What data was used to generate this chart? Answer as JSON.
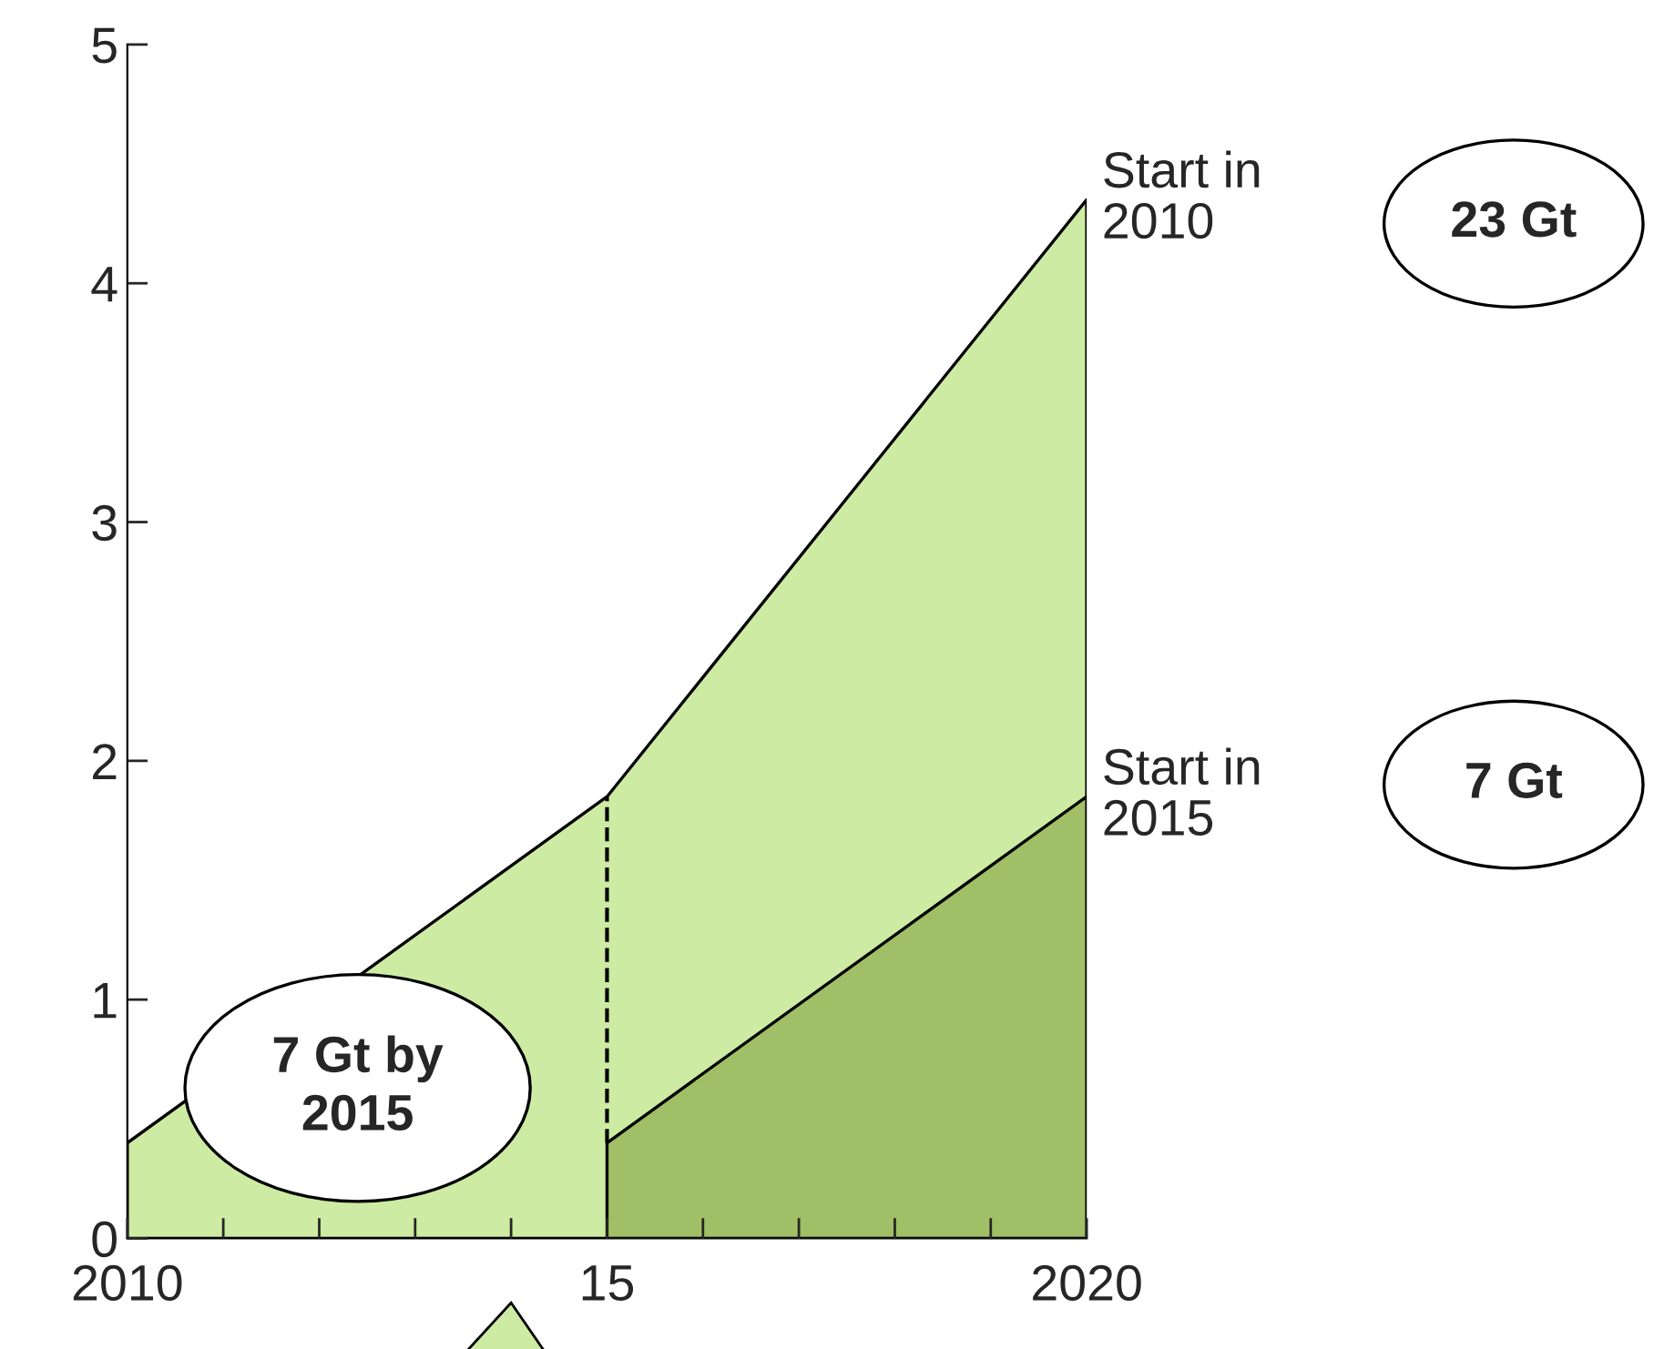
{
  "chart_data": {
    "type": "area",
    "series": [
      {
        "name": "Start in 2010",
        "color": "#cdeba2",
        "x": [
          2010,
          2015,
          2020
        ],
        "values": [
          0.4,
          1.85,
          4.35
        ]
      },
      {
        "name": "Start in 2015",
        "color": "#a0bf66",
        "x": [
          2015,
          2020
        ],
        "values": [
          0.4,
          1.85
        ]
      }
    ],
    "xlim": [
      2010,
      2020
    ],
    "xticks": [
      2010,
      {
        "value": 2011,
        "label": null
      },
      {
        "value": 2012,
        "label": null
      },
      {
        "value": 2013,
        "label": null
      },
      {
        "value": 2014,
        "label": null
      },
      {
        "value": 2015,
        "label": "15"
      },
      {
        "value": 2016,
        "label": null
      },
      {
        "value": 2017,
        "label": null
      },
      {
        "value": 2018,
        "label": null
      },
      {
        "value": 2019,
        "label": null
      },
      2020
    ],
    "ylim": [
      0,
      5
    ],
    "yticks": [
      0,
      1,
      2,
      3,
      4,
      5
    ],
    "ref_lines": [
      {
        "axis": "x",
        "value": 2015,
        "line_style": "dashed",
        "color": "#000000"
      }
    ],
    "annotations": [
      "23 Gt",
      "7 Gt",
      "7 Gt by 2015"
    ],
    "grid": false,
    "legend": false
  }
}
